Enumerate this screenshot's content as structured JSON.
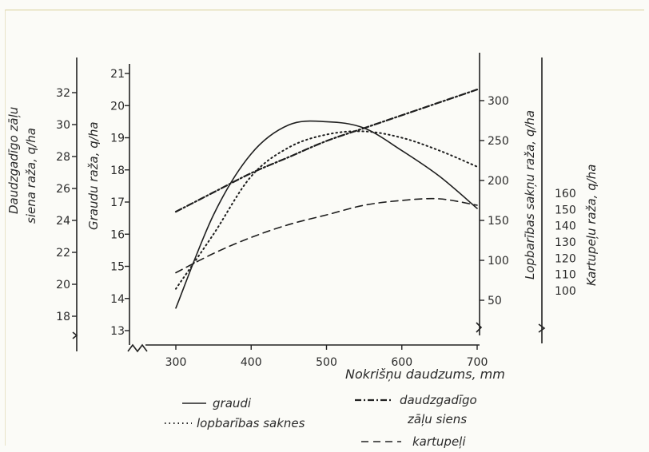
{
  "chart_data": {
    "type": "line",
    "x": [
      300,
      350,
      400,
      450,
      500,
      550,
      600,
      650,
      700
    ],
    "x_ticks": [
      "300",
      "400",
      "500",
      "600",
      "700"
    ],
    "xlabel": "Nokrišņu daudzums, mm",
    "xlim": [
      300,
      700
    ],
    "axes": [
      {
        "id": "graudi",
        "label": "Graudu raža, q/ha",
        "ticks": [
          "13",
          "14",
          "15",
          "16",
          "17",
          "18",
          "19",
          "20",
          "21"
        ],
        "lim": [
          13,
          21
        ]
      },
      {
        "id": "siens",
        "label_line1": "Daudzgadīgo zāļu",
        "label_line2": "siena raža, q/ha",
        "ticks": [
          "18",
          "20",
          "22",
          "24",
          "26",
          "28",
          "30",
          "32"
        ],
        "lim": [
          18,
          32
        ]
      },
      {
        "id": "saknes",
        "label": "Lopbarības sakņu raža, q/ha",
        "ticks": [
          "50",
          "100",
          "150",
          "200",
          "250",
          "300"
        ],
        "lim": [
          50,
          300
        ]
      },
      {
        "id": "kartupeli",
        "label": "Kartupeļu raža, q/ha",
        "ticks": [
          "100",
          "110",
          "120",
          "130",
          "140",
          "150",
          "160"
        ],
        "lim": [
          100,
          160
        ]
      }
    ],
    "series": [
      {
        "name": "graudi",
        "axis": "graudi",
        "values": [
          13.7,
          16.6,
          18.5,
          19.4,
          19.5,
          19.3,
          18.6,
          17.8,
          16.8
        ]
      },
      {
        "name": "lopbarības saknes",
        "axis": "graudi",
        "values": [
          14.3,
          16.0,
          17.8,
          18.7,
          19.1,
          19.2,
          19.0,
          18.6,
          18.1
        ]
      },
      {
        "name": "daudzgadīgo zāļu siens",
        "axis": "graudi",
        "values": [
          16.7,
          17.3,
          17.9,
          18.4,
          18.9,
          19.3,
          19.7,
          20.1,
          20.5
        ]
      },
      {
        "name": "kartupeļi",
        "axis": "graudi",
        "values": [
          14.8,
          15.4,
          15.9,
          16.3,
          16.6,
          16.9,
          17.05,
          17.1,
          16.9
        ]
      }
    ],
    "legend": [
      {
        "name": "graudi",
        "style": "solid"
      },
      {
        "name": "lopbarības saknes",
        "style": "dotted"
      },
      {
        "name_line1": "daudzgadīgo",
        "name_line2": "zāļu siens",
        "style": "dashdot"
      },
      {
        "name": "kartupeļi",
        "style": "dashed"
      }
    ],
    "legend_position": "bottom",
    "grid": false
  }
}
